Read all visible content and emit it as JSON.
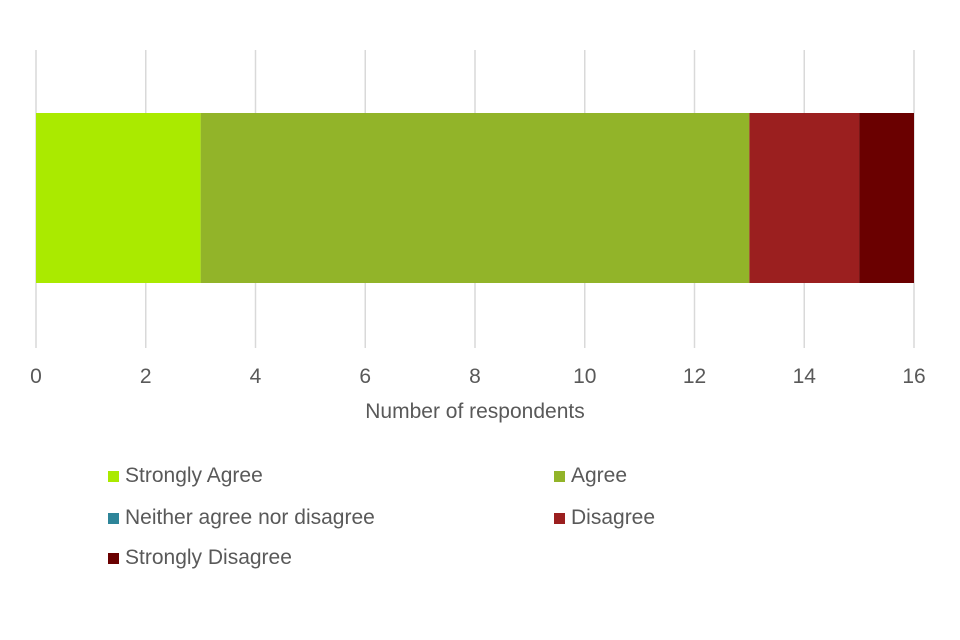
{
  "chart_data": {
    "type": "bar",
    "orientation": "horizontal",
    "stacked": true,
    "categories": [
      ""
    ],
    "series": [
      {
        "name": "Strongly Agree",
        "values": [
          3
        ],
        "color": "#aaea00"
      },
      {
        "name": "Agree",
        "values": [
          10
        ],
        "color": "#92b429"
      },
      {
        "name": "Neither agree nor disagree",
        "values": [
          0
        ],
        "color": "#2e8599"
      },
      {
        "name": "Disagree",
        "values": [
          2
        ],
        "color": "#9b1f1f"
      },
      {
        "name": "Strongly Disagree",
        "values": [
          1
        ],
        "color": "#6a0000"
      }
    ],
    "xlabel": "Number of respondents",
    "ylabel": "",
    "xlim": [
      0,
      16
    ],
    "xticks": [
      "0",
      "2",
      "4",
      "6",
      "8",
      "10",
      "12",
      "14",
      "16"
    ],
    "grid": true,
    "legend_position": "bottom"
  }
}
